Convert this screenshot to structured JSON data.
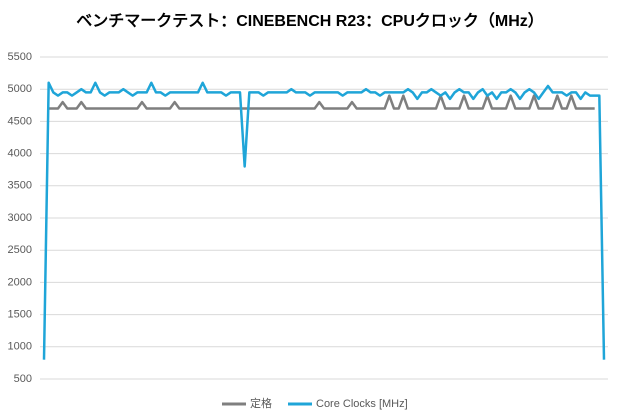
{
  "chart_data": {
    "type": "line",
    "title": "ベンチマークテスト：CINEBENCH R23：CPUクロック（MHz）",
    "ylim": [
      500,
      5500
    ],
    "yticks": [
      500,
      1000,
      1500,
      2000,
      2500,
      3000,
      3500,
      4000,
      4500,
      5000,
      5500
    ],
    "grid": true,
    "legend": "bottom",
    "series": [
      {
        "name": "定格",
        "color": "#7f7f7f",
        "values": [
          null,
          4700,
          4700,
          4700,
          4800,
          4700,
          4700,
          4700,
          4800,
          4700,
          4700,
          4700,
          4700,
          4700,
          4700,
          4700,
          4700,
          4700,
          4700,
          4700,
          4700,
          4800,
          4700,
          4700,
          4700,
          4700,
          4700,
          4700,
          4800,
          4700,
          4700,
          4700,
          4700,
          4700,
          4700,
          4700,
          4700,
          4700,
          4700,
          4700,
          4700,
          4700,
          4700,
          4700,
          4700,
          4700,
          4700,
          4700,
          4700,
          4700,
          4700,
          4700,
          4700,
          4700,
          4700,
          4700,
          4700,
          4700,
          4700,
          4800,
          4700,
          4700,
          4700,
          4700,
          4700,
          4700,
          4800,
          4700,
          4700,
          4700,
          4700,
          4700,
          4700,
          4700,
          4900,
          4700,
          4700,
          4900,
          4700,
          4700,
          4700,
          4700,
          4700,
          4700,
          4700,
          4900,
          4700,
          4700,
          4700,
          4700,
          4900,
          4700,
          4700,
          4700,
          4700,
          4900,
          4700,
          4700,
          4700,
          4700,
          4900,
          4700,
          4700,
          4700,
          4700,
          4900,
          4700,
          4700,
          4700,
          4700,
          4900,
          4700,
          4700,
          4900,
          4700,
          4700,
          4700,
          4700,
          4700,
          null,
          null
        ]
      },
      {
        "name": "Core Clocks [MHz]",
        "color": "#1fa5d8",
        "values": [
          800,
          5100,
          4950,
          4900,
          4950,
          4950,
          4900,
          4950,
          5000,
          4950,
          4950,
          5100,
          4950,
          4900,
          4950,
          4950,
          4950,
          5000,
          4950,
          4900,
          4950,
          4950,
          4950,
          5100,
          4950,
          4950,
          4900,
          4950,
          4950,
          4950,
          4950,
          4950,
          4950,
          4950,
          5100,
          4950,
          4950,
          4950,
          4950,
          4900,
          4950,
          4950,
          4950,
          3800,
          4950,
          4950,
          4950,
          4900,
          4950,
          4950,
          4950,
          4950,
          4950,
          5000,
          4950,
          4950,
          4950,
          4900,
          4950,
          4950,
          4950,
          4950,
          4950,
          4950,
          4900,
          4950,
          4950,
          4950,
          4950,
          5000,
          4950,
          4950,
          4900,
          4950,
          4950,
          4950,
          4950,
          4950,
          5000,
          4950,
          4850,
          4950,
          4950,
          5000,
          4950,
          4900,
          4950,
          4850,
          4950,
          5000,
          4950,
          4950,
          4850,
          4950,
          5000,
          4900,
          4950,
          4850,
          4950,
          4950,
          5000,
          4950,
          4850,
          4950,
          5000,
          4950,
          4850,
          4950,
          5050,
          4950,
          4950,
          4950,
          4900,
          4950,
          4950,
          4850,
          4950,
          4900,
          4900,
          4900,
          800
        ]
      }
    ]
  }
}
